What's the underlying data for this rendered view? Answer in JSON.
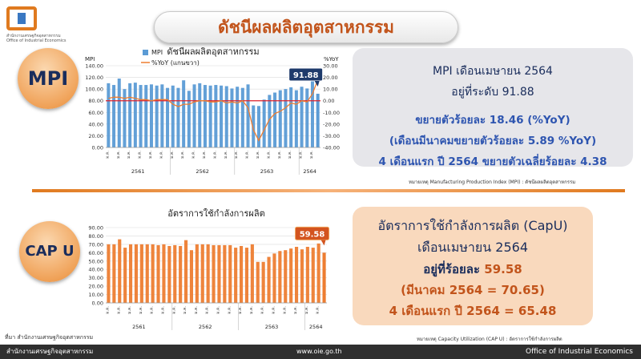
{
  "header": {
    "title": "ดัชนีผลผลิตอุตสาหกรรม",
    "logo_text_line1": "สำนักงานเศรษฐกิจอุตสาหกรรม",
    "logo_text_line2": "Office of Industrial Economics"
  },
  "mpi": {
    "badge": "MPI",
    "line1": "MPI เดือนเมษายน 2564",
    "line2": "อยู่ที่ระดับ 91.88",
    "line3": "ขยายตัวร้อยละ 18.46  (%YoY)",
    "line4": "(เดือนมีนาคมขยายตัวร้อยละ 5.89 %YoY)",
    "line5": "4 เดือนแรก ปี 2564 ขยายตัวเฉลี่ยร้อยละ 4.38",
    "note": "หมายเหตุ Manufacturing Production Index (MPI) : ดัชนีผลผลิตอุตสาหกรรม"
  },
  "capu": {
    "badge": "CAP U",
    "line1": "อัตราการใช้กำลังการผลิต (CapU)",
    "line2": "เดือนเมษายน 2564",
    "line3_prefix": "อยู่ที่ร้อยละ",
    "line3_value": "59.58",
    "line4": "(มีนาคม 2564 = 70.65)",
    "line5": "4 เดือนแรก ปี 2564 = 65.48",
    "note": "หมายเหตุ Capacity Utilization (CAP U) : อัตราการใช้กำลังการผลิต"
  },
  "source": "ที่มา  สำนักงานเศรษฐกิจอุตสาหกรรม",
  "footer": {
    "left": "สำนักงานเศรษฐกิจอุตสาหกรรม",
    "center": "www.oie.go.th",
    "right": "Office of Industrial Economics"
  },
  "chart_data": [
    {
      "type": "bar",
      "title": "ดัชนีผลผลิตอุตสาหกรรม",
      "ylabel_left": "MPI",
      "ylabel_right": "%YoY",
      "ylim": [
        0,
        140
      ],
      "y2lim": [
        -40,
        30
      ],
      "yticks": [
        "140.00",
        "120.00",
        "100.00",
        "80.00",
        "60.00",
        "40.00",
        "20.00",
        "0.00"
      ],
      "y2ticks": [
        "30.00",
        "20.00",
        "10.00",
        "0.00",
        "-10.00",
        "-20.00",
        "-30.00",
        "-40.00"
      ],
      "years": [
        "2561",
        "2562",
        "2563",
        "2564"
      ],
      "tick_label": "ม.ค.",
      "highlight_label": "91.88",
      "series": [
        {
          "name": "MPI",
          "color": "#5b9bd5",
          "values": [
            110,
            107,
            118,
            100,
            110,
            111,
            107,
            107,
            108,
            106,
            108,
            102,
            106,
            102,
            115,
            97,
            108,
            110,
            107,
            106,
            107,
            106,
            105,
            101,
            104,
            102,
            108,
            72,
            71,
            82,
            90,
            94,
            98,
            100,
            103,
            98,
            104,
            101,
            115,
            92
          ]
        },
        {
          "name": "%YoY (แกนขวา)",
          "color": "#ed7d31",
          "values": [
            2,
            3,
            3,
            2,
            3,
            2,
            1,
            1,
            0,
            1,
            1,
            1,
            -3,
            -5,
            -3,
            -3,
            -1,
            0,
            0,
            -1,
            -1,
            0,
            -2,
            -1,
            -2,
            0,
            -6,
            -25,
            -34,
            -25,
            -16,
            -11,
            -9,
            -6,
            -2,
            -3,
            0,
            -1,
            6,
            18
          ]
        }
      ]
    },
    {
      "type": "bar",
      "title": "อัตราการใช้กำลังการผลิต",
      "ylim": [
        0,
        90
      ],
      "yticks": [
        "90.00",
        "80.00",
        "70.00",
        "60.00",
        "50.00",
        "40.00",
        "30.00",
        "20.00",
        "10.00",
        "0.00"
      ],
      "years": [
        "2561",
        "2562",
        "2563",
        "2564"
      ],
      "tick_label": "ม.ค.",
      "highlight_label": "59.58",
      "series": [
        {
          "name": "CapU",
          "color": "#ed7d31",
          "values": [
            70,
            70,
            76,
            66,
            70,
            70,
            70,
            70,
            70,
            69,
            70,
            68,
            69,
            68,
            75,
            63,
            70,
            70,
            70,
            69,
            69,
            69,
            69,
            66,
            68,
            66,
            70,
            49,
            49,
            55,
            59,
            62,
            63,
            65,
            67,
            64,
            67,
            66,
            71,
            60
          ]
        }
      ]
    }
  ]
}
